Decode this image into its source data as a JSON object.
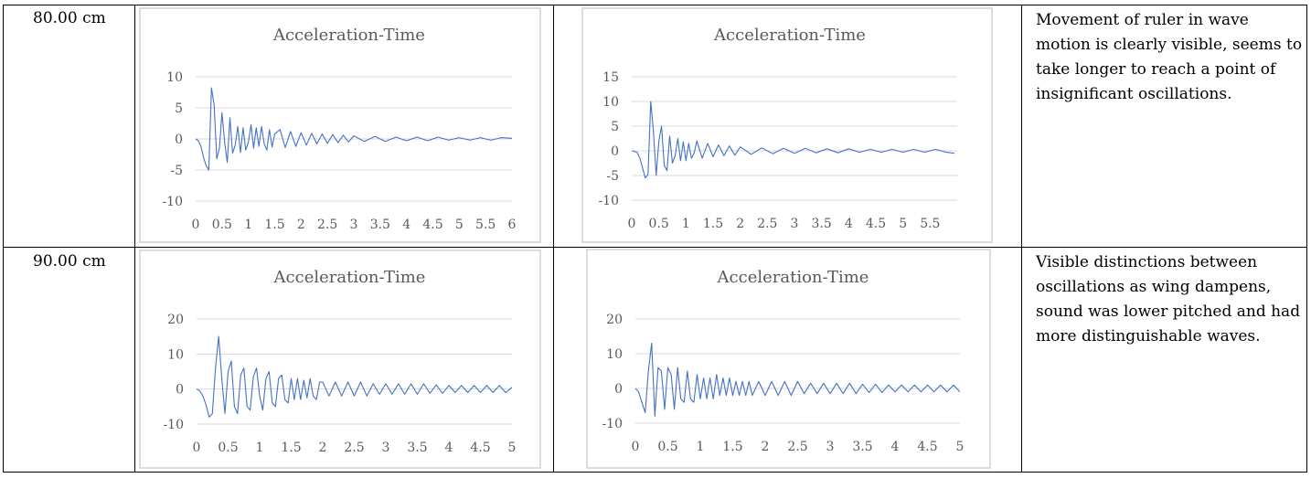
{
  "rows": [
    {
      "length": "80.00 cm",
      "comment": "Movement of ruler in wave motion is clearly visible, seems to take longer to reach a point of insignificant oscillations."
    },
    {
      "length": "90.00 cm",
      "comment": "Visible distinctions between oscillations as wing dampens, sound was lower pitched and had more distinguishable waves."
    }
  ],
  "chart_data": [
    {
      "type": "line",
      "title": "Acceleration-Time",
      "xlabel": "",
      "ylabel": "",
      "xlim": [
        0,
        6
      ],
      "ylim": [
        -10,
        10
      ],
      "x_ticks": [
        "0",
        "0.5",
        "1",
        "1.5",
        "2",
        "2.5",
        "3",
        "3.5",
        "4",
        "4.5",
        "5",
        "5.5",
        "6"
      ],
      "y_ticks": [
        "10",
        "5",
        "0",
        "-5",
        "-10"
      ],
      "grid": true,
      "series": [
        {
          "x": [
            0,
            0.05,
            0.1,
            0.15,
            0.2,
            0.25,
            0.3,
            0.35,
            0.4,
            0.45,
            0.5,
            0.55,
            0.6,
            0.65,
            0.7,
            0.75,
            0.8,
            0.85,
            0.9,
            0.95,
            1,
            1.05,
            1.1,
            1.15,
            1.2,
            1.25,
            1.3,
            1.35,
            1.4,
            1.45,
            1.5,
            1.6,
            1.7,
            1.8,
            1.9,
            2,
            2.1,
            2.2,
            2.3,
            2.4,
            2.5,
            2.6,
            2.7,
            2.8,
            2.9,
            3,
            3.2,
            3.4,
            3.6,
            3.8,
            4,
            4.2,
            4.4,
            4.6,
            4.8,
            5,
            5.2,
            5.4,
            5.6,
            5.8,
            6
          ],
          "y": [
            0,
            -0.3,
            -1.2,
            -3,
            -4.3,
            -5,
            8.2,
            5.5,
            -3.2,
            -1.5,
            4.2,
            -0.5,
            -3.8,
            3.4,
            -2.3,
            -1,
            2,
            -2.2,
            1.8,
            -1.8,
            -0.5,
            2.3,
            -1.5,
            1.8,
            -1.2,
            2,
            -0.8,
            -1.8,
            1.5,
            -1.3,
            0.8,
            1.5,
            -1.4,
            1.2,
            -1.2,
            1,
            -1,
            0.9,
            -0.8,
            0.8,
            -0.7,
            0.7,
            -0.6,
            0.6,
            -0.5,
            0.5,
            -0.4,
            0.4,
            -0.4,
            0.3,
            -0.3,
            0.3,
            -0.3,
            0.3,
            -0.2,
            0.2,
            -0.2,
            0.2,
            -0.2,
            0.2,
            0.1
          ]
        }
      ]
    },
    {
      "type": "line",
      "title": "Acceleration-Time",
      "xlabel": "",
      "ylabel": "",
      "xlim": [
        0,
        6
      ],
      "ylim": [
        -10,
        15
      ],
      "x_ticks": [
        "0",
        "0.5",
        "1",
        "1.5",
        "2",
        "2.5",
        "3",
        "3.5",
        "4",
        "4.5",
        "5",
        "5.5"
      ],
      "y_ticks": [
        "15",
        "10",
        "5",
        "0",
        "-5",
        "-10"
      ],
      "grid": true,
      "series": [
        {
          "x": [
            0,
            0.1,
            0.15,
            0.2,
            0.25,
            0.3,
            0.35,
            0.4,
            0.45,
            0.5,
            0.55,
            0.6,
            0.65,
            0.7,
            0.75,
            0.8,
            0.85,
            0.9,
            0.95,
            1,
            1.05,
            1.1,
            1.15,
            1.2,
            1.3,
            1.4,
            1.5,
            1.6,
            1.7,
            1.8,
            1.9,
            2,
            2.2,
            2.4,
            2.6,
            2.8,
            3,
            3.2,
            3.4,
            3.6,
            3.8,
            4,
            4.2,
            4.4,
            4.6,
            4.8,
            5,
            5.2,
            5.4,
            5.6,
            5.8,
            5.95
          ],
          "y": [
            0,
            -0.3,
            -1.5,
            -3.5,
            -5.5,
            -4.8,
            10,
            4,
            -5,
            2,
            5,
            -3,
            -4,
            3,
            -2.5,
            -1,
            2.5,
            -2,
            1.8,
            -2,
            1.5,
            -1.5,
            -0.5,
            2,
            -1.5,
            1.5,
            -1.2,
            1.2,
            -1,
            1,
            -0.9,
            0.8,
            -0.7,
            0.6,
            -0.6,
            0.5,
            -0.5,
            0.5,
            -0.4,
            0.4,
            -0.4,
            0.4,
            -0.3,
            0.3,
            -0.3,
            0.3,
            -0.3,
            0.3,
            -0.3,
            0.3,
            -0.3,
            -0.5
          ]
        }
      ]
    },
    {
      "type": "line",
      "title": "Acceleration-Time",
      "xlabel": "",
      "ylabel": "",
      "xlim": [
        0,
        5
      ],
      "ylim": [
        -10,
        20
      ],
      "x_ticks": [
        "0",
        "0.5",
        "1",
        "1.5",
        "2",
        "2.5",
        "3",
        "3.5",
        "4",
        "4.5",
        "5"
      ],
      "y_ticks": [
        "20",
        "10",
        "0",
        "-10"
      ],
      "grid": true,
      "series": [
        {
          "x": [
            0,
            0.05,
            0.1,
            0.15,
            0.2,
            0.25,
            0.3,
            0.35,
            0.4,
            0.45,
            0.5,
            0.55,
            0.6,
            0.65,
            0.7,
            0.75,
            0.8,
            0.85,
            0.9,
            0.95,
            1,
            1.05,
            1.1,
            1.15,
            1.2,
            1.25,
            1.3,
            1.35,
            1.4,
            1.45,
            1.5,
            1.55,
            1.6,
            1.65,
            1.7,
            1.75,
            1.8,
            1.85,
            1.9,
            1.95,
            2,
            2.1,
            2.2,
            2.3,
            2.4,
            2.5,
            2.6,
            2.7,
            2.8,
            2.9,
            3,
            3.1,
            3.2,
            3.3,
            3.4,
            3.5,
            3.6,
            3.7,
            3.8,
            3.9,
            4,
            4.1,
            4.2,
            4.3,
            4.4,
            4.5,
            4.6,
            4.7,
            4.8,
            4.9,
            5
          ],
          "y": [
            0,
            -0.5,
            -2,
            -4.5,
            -8,
            -7,
            6,
            15,
            3,
            -7,
            5,
            8,
            -5,
            -7,
            4,
            6,
            -5,
            -6,
            3.5,
            6,
            -2,
            -6,
            3,
            5,
            -4,
            -5,
            3,
            4,
            -3,
            -4,
            3,
            -3,
            3,
            -3,
            2.5,
            -2.5,
            3,
            -2,
            -3,
            2,
            2,
            -2,
            2,
            -2,
            2,
            -2,
            2,
            -2,
            1.5,
            -1.5,
            1.5,
            -1.5,
            1.5,
            -1.5,
            1.5,
            -1.5,
            1.5,
            -1.2,
            1.2,
            -1.2,
            1,
            -1,
            1,
            -1,
            1,
            -1,
            1,
            -1,
            1,
            -1,
            0.5
          ]
        }
      ]
    },
    {
      "type": "line",
      "title": "Acceleration-Time",
      "xlabel": "",
      "ylabel": "",
      "xlim": [
        0,
        5
      ],
      "ylim": [
        -10,
        20
      ],
      "x_ticks": [
        "0",
        "0.5",
        "1",
        "1.5",
        "2",
        "2.5",
        "3",
        "3.5",
        "4",
        "4.5",
        "5"
      ],
      "y_ticks": [
        "20",
        "10",
        "0",
        "-10"
      ],
      "grid": true,
      "series": [
        {
          "x": [
            0,
            0.05,
            0.1,
            0.15,
            0.2,
            0.25,
            0.3,
            0.35,
            0.4,
            0.45,
            0.5,
            0.55,
            0.6,
            0.65,
            0.7,
            0.75,
            0.8,
            0.85,
            0.9,
            0.95,
            1,
            1.05,
            1.1,
            1.15,
            1.2,
            1.25,
            1.3,
            1.35,
            1.4,
            1.45,
            1.5,
            1.55,
            1.6,
            1.65,
            1.7,
            1.75,
            1.8,
            1.9,
            2,
            2.1,
            2.2,
            2.3,
            2.4,
            2.5,
            2.6,
            2.7,
            2.8,
            2.9,
            3,
            3.1,
            3.2,
            3.3,
            3.4,
            3.5,
            3.6,
            3.7,
            3.8,
            3.9,
            4,
            4.1,
            4.2,
            4.3,
            4.4,
            4.5,
            4.6,
            4.7,
            4.8,
            4.9,
            5
          ],
          "y": [
            0,
            -1,
            -4,
            -7,
            5,
            13,
            -8,
            6,
            5,
            -6,
            6,
            4,
            -6,
            6,
            -3,
            -4,
            5,
            -3,
            -4,
            4,
            -3,
            3,
            -3,
            3,
            -3,
            4,
            -2,
            3,
            -2,
            3,
            -2,
            2,
            -2,
            2,
            -2,
            2,
            -2,
            2,
            -2,
            2,
            -2,
            2,
            -2,
            2,
            -1.5,
            1.5,
            -1.5,
            1.5,
            -1.5,
            1.5,
            -1.5,
            1.5,
            -1.5,
            1.2,
            -1.2,
            1.2,
            -1.2,
            1,
            -1,
            1,
            -1,
            1,
            -1,
            1,
            -1,
            1,
            -1,
            1,
            -1
          ]
        }
      ]
    }
  ]
}
